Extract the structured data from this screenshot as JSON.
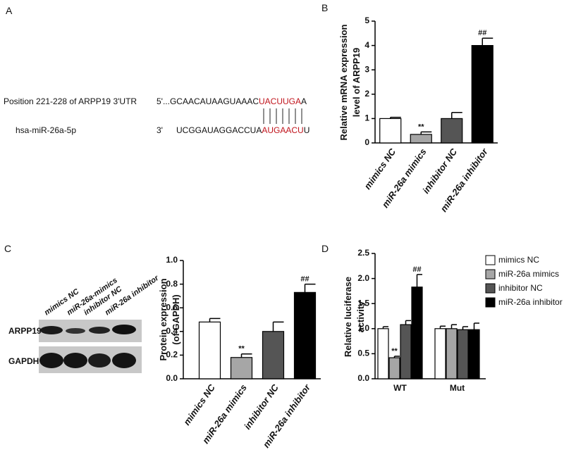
{
  "panel_labels": [
    "A",
    "B",
    "C",
    "D"
  ],
  "sequence": {
    "target_label": "Position  221-228 of ARPP19 3'UTR",
    "target_prefix": "5'...GCAACAUAAGUAAAC",
    "target_seed": "UACUUGA",
    "target_suffix": "A",
    "mirna_label": "hsa-miR-26a-5p",
    "mirna_end": "3'",
    "mirna_prefix": "UCGGAUAGGACCUA",
    "mirna_seed": "AUGAACU",
    "mirna_suffix": "U"
  },
  "blot": {
    "lanes": [
      "mimics NC",
      "miR-26a-mimics",
      "inhibitor NC",
      "miR-26a inhibitor"
    ],
    "rows": [
      "ARPP19",
      "GAPDH"
    ]
  },
  "chart_data": [
    {
      "type": "bar",
      "ylabel": [
        "Relative mRNA expression",
        "level of ARPP19"
      ],
      "categories": [
        "mimics NC",
        "miR-26a mimics",
        "inhibitor NC",
        "miR-26a inhibitor"
      ],
      "values": [
        1.0,
        0.35,
        1.0,
        4.0
      ],
      "errors": [
        0.05,
        0.1,
        0.25,
        0.3
      ],
      "colors": [
        "#ffffff",
        "#a6a6a6",
        "#555555",
        "#000000"
      ],
      "significance": [
        null,
        "**",
        null,
        "##"
      ],
      "ylim": [
        0,
        5
      ],
      "yticks": [
        0,
        1,
        2,
        3,
        4,
        5
      ]
    },
    {
      "type": "bar",
      "ylabel": [
        "Protein expression",
        "(of GAPDH)"
      ],
      "categories": [
        "mimics NC",
        "miR-26a mimics",
        "inhibitor NC",
        "miR-26a inhibitor"
      ],
      "values": [
        0.48,
        0.18,
        0.4,
        0.73
      ],
      "errors": [
        0.03,
        0.03,
        0.08,
        0.07
      ],
      "colors": [
        "#ffffff",
        "#a6a6a6",
        "#555555",
        "#000000"
      ],
      "significance": [
        null,
        "**",
        null,
        "##"
      ],
      "ylim": [
        0,
        1
      ],
      "yticks": [
        {
          "value": 0,
          "label": "0.0"
        },
        0.2,
        0.4,
        0.6,
        0.8,
        {
          "value": 1,
          "label": "1.0"
        }
      ]
    },
    {
      "type": "grouped_bar",
      "ylabel": [
        "Relative luciferase",
        "activity"
      ],
      "categories": [
        "WT",
        "Mut"
      ],
      "series": [
        {
          "name": "mimics NC",
          "color": "#ffffff",
          "values": [
            1.0,
            1.0
          ],
          "errors": [
            0.04,
            0.05
          ]
        },
        {
          "name": "miR-26a mimics",
          "color": "#a6a6a6",
          "values": [
            0.42,
            1.0
          ],
          "errors": [
            0.03,
            0.08
          ],
          "significance": [
            "**",
            null
          ]
        },
        {
          "name": "inhibitor NC",
          "color": "#555555",
          "values": [
            1.08,
            0.98
          ],
          "errors": [
            0.08,
            0.06
          ]
        },
        {
          "name": "miR-26a inhibitor",
          "color": "#000000",
          "values": [
            1.83,
            0.98
          ],
          "errors": [
            0.25,
            0.13
          ],
          "significance": [
            "##",
            null
          ]
        }
      ],
      "legend": "right",
      "ylim": [
        0,
        2.5
      ],
      "yticks": [
        {
          "value": 0,
          "label": "0.0"
        },
        0.5,
        {
          "value": 1,
          "label": "1.0"
        },
        1.5,
        {
          "value": 2,
          "label": "2.0"
        },
        2.5
      ]
    }
  ]
}
